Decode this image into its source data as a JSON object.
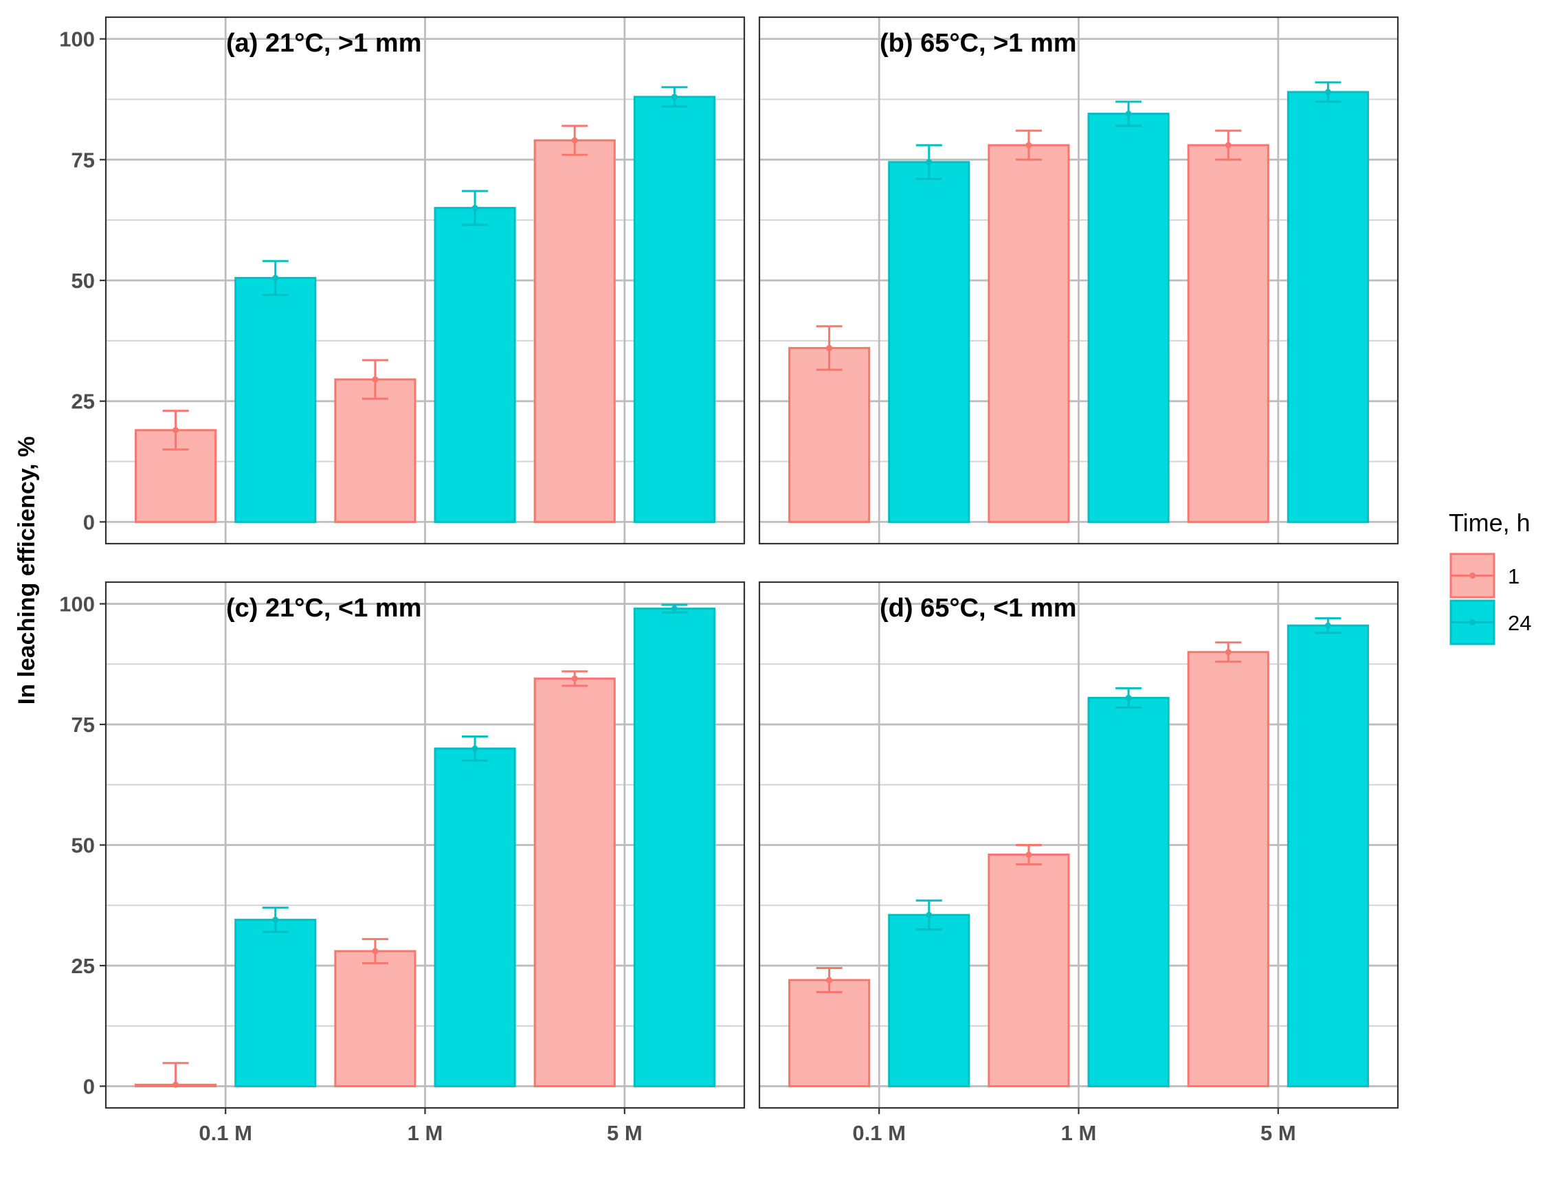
{
  "chart_data": {
    "type": "bar",
    "ylabel": "In leaching efficiency, %",
    "xlabel": "",
    "ylim": [
      0,
      100
    ],
    "yticks": [
      0,
      25,
      50,
      75,
      100
    ],
    "categories": [
      "0.1 M",
      "1 M",
      "5 M"
    ],
    "legend": {
      "title": "Time, h",
      "position": "right",
      "entries": [
        {
          "label": "1",
          "fill": "#F8766D",
          "fill_light": "#FCB3AE"
        },
        {
          "label": "24",
          "fill": "#00BFC4",
          "fill_light": "#00D9DE"
        }
      ]
    },
    "panels": [
      {
        "title": "(a)   21°C, >1 mm",
        "series": [
          {
            "name": "1",
            "values": [
              19,
              29.5,
              79
            ],
            "error": [
              4,
              4,
              3
            ]
          },
          {
            "name": "24",
            "values": [
              50.5,
              65,
              88
            ],
            "error": [
              3.5,
              3.5,
              2
            ]
          }
        ]
      },
      {
        "title": "(b)   65°C, >1 mm",
        "series": [
          {
            "name": "1",
            "values": [
              36,
              78,
              78
            ],
            "error": [
              4.5,
              3,
              3
            ]
          },
          {
            "name": "24",
            "values": [
              74.5,
              84.5,
              89
            ],
            "error": [
              3.5,
              2.5,
              2
            ]
          }
        ]
      },
      {
        "title": "(c)   21°C, <1 mm",
        "series": [
          {
            "name": "1",
            "values": [
              0.3,
              28,
              84.5
            ],
            "error": [
              4.5,
              2.5,
              1.5
            ]
          },
          {
            "name": "24",
            "values": [
              34.5,
              70,
              99
            ],
            "error": [
              2.5,
              2.5,
              0.8
            ]
          }
        ]
      },
      {
        "title": "(d)   65°C, <1 mm",
        "series": [
          {
            "name": "1",
            "values": [
              22,
              48,
              90
            ],
            "error": [
              2.5,
              2,
              2
            ]
          },
          {
            "name": "24",
            "values": [
              35.5,
              80.5,
              95.5
            ],
            "error": [
              3,
              2,
              1.5
            ]
          }
        ]
      }
    ]
  }
}
